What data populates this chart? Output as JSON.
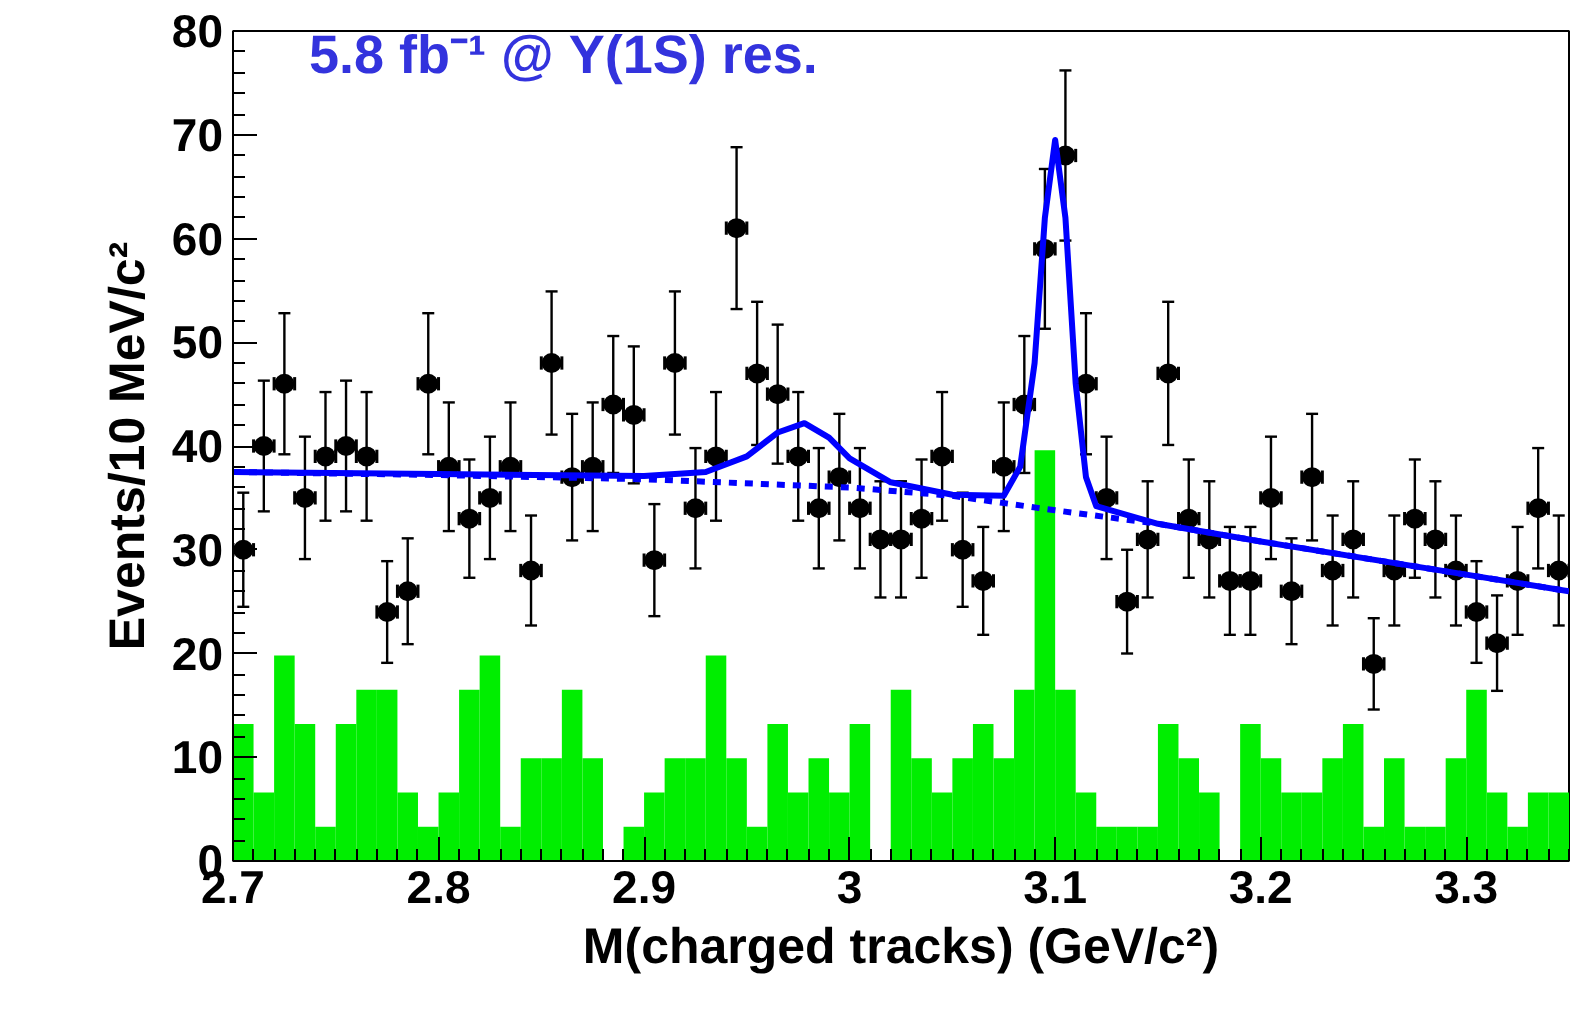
{
  "chart_data": {
    "type": "scatter",
    "xlabel": "M(charged tracks) (GeV/c²)",
    "ylabel": "Events/10 MeV/c²",
    "annotations": [
      "5.8 fb⁻¹ @ Υ(1S) res."
    ],
    "xlim": [
      2.7,
      3.35
    ],
    "xticks": [
      2.7,
      2.8,
      2.9,
      3,
      3.1,
      3.2,
      3.3
    ],
    "ylim": [
      0,
      80
    ],
    "yticks": [
      0,
      10,
      20,
      30,
      40,
      50,
      60,
      70,
      80
    ],
    "grid": false,
    "series": [
      {
        "type": "histogram",
        "color": "#00ee00",
        "bins": [
          2.7,
          2.71,
          2.72,
          2.73,
          2.74,
          2.75,
          2.76,
          2.77,
          2.78,
          2.79,
          2.8,
          2.81,
          2.82,
          2.83,
          2.84,
          2.85,
          2.86,
          2.87,
          2.88,
          2.89,
          2.9,
          2.91,
          2.92,
          2.93,
          2.94,
          2.95,
          2.96,
          2.97,
          2.98,
          2.99,
          3.0,
          3.01,
          3.02,
          3.03,
          3.04,
          3.05,
          3.06,
          3.07,
          3.08,
          3.09,
          3.1,
          3.11,
          3.12,
          3.13,
          3.14,
          3.15,
          3.16,
          3.17,
          3.18,
          3.19,
          3.2,
          3.21,
          3.22,
          3.23,
          3.24,
          3.25,
          3.26,
          3.27,
          3.28,
          3.29,
          3.3,
          3.31,
          3.32,
          3.33,
          3.34,
          3.35
        ],
        "values": [
          13.2,
          6.6,
          19.8,
          13.2,
          3.3,
          13.2,
          16.5,
          16.5,
          6.6,
          3.3,
          6.6,
          16.5,
          19.8,
          3.3,
          9.9,
          9.9,
          16.5,
          9.9,
          0,
          3.3,
          6.6,
          9.9,
          9.9,
          19.8,
          9.9,
          3.3,
          13.2,
          6.6,
          9.9,
          6.6,
          13.2,
          0,
          16.5,
          9.9,
          6.6,
          9.9,
          13.2,
          9.9,
          16.5,
          39.6,
          16.5,
          6.6,
          3.3,
          3.3,
          3.3,
          13.2,
          9.9,
          6.6,
          0,
          13.2,
          9.9,
          6.6,
          6.6,
          9.9,
          13.2,
          3.3,
          9.9,
          3.3,
          3.3,
          9.9,
          16.5,
          6.6,
          3.3,
          6.6,
          6.6
        ]
      },
      {
        "color": "#000000",
        "marker": "circle",
        "x": [
          2.705,
          2.715,
          2.725,
          2.735,
          2.745,
          2.755,
          2.765,
          2.775,
          2.785,
          2.795,
          2.805,
          2.815,
          2.825,
          2.835,
          2.845,
          2.855,
          2.865,
          2.875,
          2.885,
          2.895,
          2.905,
          2.915,
          2.925,
          2.935,
          2.945,
          2.955,
          2.965,
          2.975,
          2.985,
          2.995,
          3.005,
          3.015,
          3.025,
          3.035,
          3.045,
          3.055,
          3.065,
          3.075,
          3.085,
          3.095,
          3.105,
          3.115,
          3.125,
          3.135,
          3.145,
          3.155,
          3.165,
          3.175,
          3.185,
          3.195,
          3.205,
          3.215,
          3.225,
          3.235,
          3.245,
          3.255,
          3.265,
          3.275,
          3.285,
          3.295,
          3.305,
          3.315,
          3.325,
          3.335,
          3.345
        ],
        "values": [
          30,
          40,
          46,
          35,
          39,
          40,
          39,
          24,
          26,
          46,
          38,
          33,
          35,
          38,
          28,
          48,
          37,
          38,
          44,
          43,
          29,
          48,
          34,
          39,
          61,
          47,
          45,
          39,
          34,
          37,
          34,
          31,
          31,
          33,
          39,
          30,
          27,
          38,
          44,
          59,
          68,
          46,
          35,
          25,
          31,
          47,
          33,
          31,
          27,
          27,
          35,
          26,
          37,
          28,
          31,
          19,
          28,
          33,
          31,
          28,
          24,
          21,
          27,
          34,
          28
        ],
        "errors": [
          5.5,
          6.3,
          6.8,
          5.9,
          6.2,
          6.3,
          6.2,
          4.9,
          5.1,
          6.8,
          6.2,
          5.7,
          5.9,
          6.2,
          5.3,
          6.9,
          6.1,
          6.2,
          6.6,
          6.6,
          5.4,
          6.9,
          5.8,
          6.2,
          7.8,
          6.9,
          6.7,
          6.2,
          5.8,
          6.1,
          5.8,
          5.6,
          5.6,
          5.7,
          6.2,
          5.5,
          5.2,
          6.2,
          6.6,
          7.7,
          8.2,
          6.8,
          5.9,
          5.0,
          5.6,
          6.9,
          5.7,
          5.6,
          5.2,
          5.2,
          5.9,
          5.1,
          6.1,
          5.3,
          5.6,
          4.4,
          5.3,
          5.7,
          5.6,
          5.3,
          4.9,
          4.6,
          5.2,
          5.8,
          5.3
        ],
        "xerrors": [
          0.005,
          0.005,
          0.005,
          0.005,
          0.005,
          0.005,
          0.005,
          0.005,
          0.005,
          0.005,
          0.005,
          0.005,
          0.005,
          0.005,
          0.005,
          0.005,
          0.005,
          0.005,
          0.005,
          0.005,
          0.005,
          0.005,
          0.005,
          0.005,
          0.005,
          0.005,
          0.005,
          0.005,
          0.005,
          0.005,
          0.005,
          0.005,
          0.005,
          0.005,
          0.005,
          0.005,
          0.005,
          0.005,
          0.005,
          0.005,
          0.005,
          0.005,
          0.005,
          0.005,
          0.005,
          0.005,
          0.005,
          0.005,
          0.005,
          0.005,
          0.005,
          0.005,
          0.005,
          0.005,
          0.005,
          0.005,
          0.005,
          0.005,
          0.005,
          0.005,
          0.005,
          0.005,
          0.005,
          0.005,
          0.005
        ]
      },
      {
        "type": "line",
        "color": "#0000ff",
        "line_style": "dashed",
        "x": [
          2.7,
          2.8,
          2.9,
          3.0,
          3.05,
          3.1,
          3.15,
          3.2,
          3.3,
          3.35
        ],
        "values": [
          37.5,
          37.2,
          36.8,
          36,
          35.2,
          33.8,
          32.5,
          30.8,
          27.6,
          26
        ]
      },
      {
        "type": "line",
        "color": "#0000ff",
        "line_style": "solid",
        "x": [
          2.7,
          2.8,
          2.9,
          2.93,
          2.95,
          2.965,
          2.978,
          2.99,
          3.0,
          3.02,
          3.05,
          3.075,
          3.083,
          3.09,
          3.095,
          3.1,
          3.105,
          3.11,
          3.115,
          3.12,
          3.15,
          3.2,
          3.3,
          3.35
        ],
        "values": [
          37.5,
          37.3,
          37.1,
          37.5,
          39,
          41.3,
          42.2,
          40.8,
          38.8,
          36.5,
          35.3,
          35.2,
          38,
          48,
          62,
          69.5,
          62,
          46,
          37,
          34.2,
          32.5,
          30.8,
          27.6,
          26
        ]
      }
    ]
  }
}
